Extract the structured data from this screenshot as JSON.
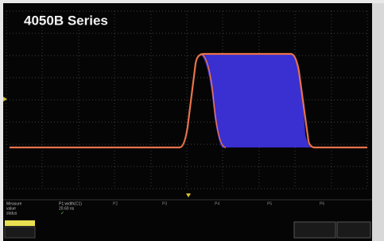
{
  "header": {
    "title": "4050B Series"
  },
  "measure_panel": {
    "label": "Measure",
    "rows": [
      "value",
      "status"
    ],
    "parameter": "P1:width(C1)",
    "reading": "20.60 ns",
    "other_parameters": [
      "P2",
      "P3",
      "P4",
      "P5",
      "P6"
    ]
  }
}
